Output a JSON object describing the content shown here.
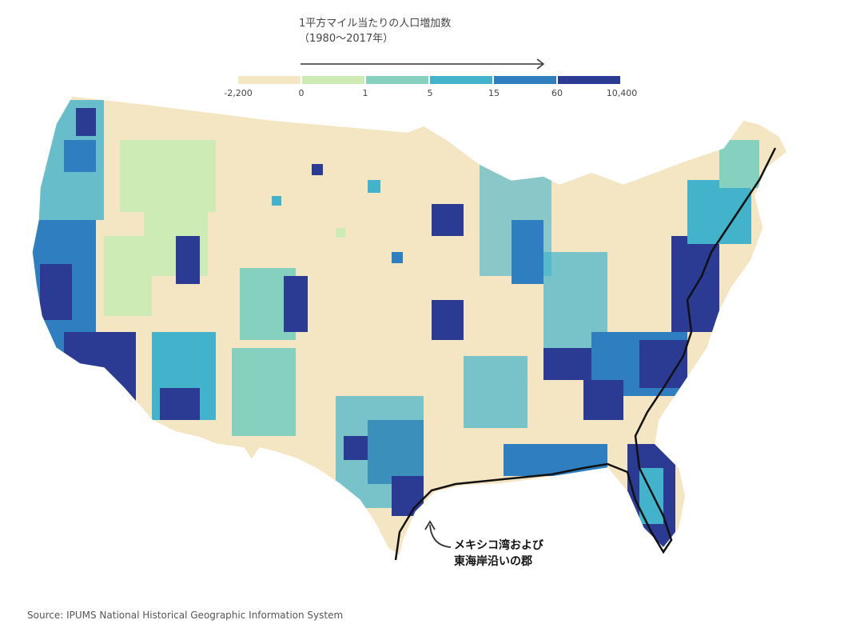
{
  "legend": {
    "title_line1": "1平方マイル当たりの人口増加数",
    "title_line2": "（1980～2017年）",
    "ticks": [
      "-2,200",
      "0",
      "1",
      "5",
      "15",
      "60",
      "10,400"
    ],
    "colors": [
      "#f5e6c3",
      "#cdebb4",
      "#86d0c0",
      "#43b3cc",
      "#2f7fc0",
      "#2b3b93"
    ]
  },
  "annotation": {
    "line1": "メキシコ湾および",
    "line2": "東海岸沿いの郡"
  },
  "source": "Source: IPUMS National Historical Geographic Information System"
}
